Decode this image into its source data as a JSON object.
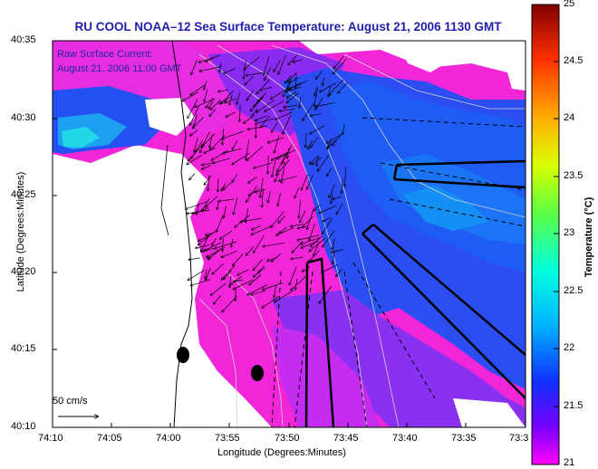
{
  "title": "RU COOL  NOAA–12  Sea Surface Temperature:  August 21, 2006 1130 GMT",
  "annotation": {
    "line1": "Raw Surface Current:",
    "line2": "August 21, 2006 11:00 GMT"
  },
  "scale_label": "50 cm/s",
  "axes": {
    "ylabel": "Latitude (Degrees:Minutes)",
    "xlabel": "Longitude (Degrees:Minutes)",
    "lat_ticks": [
      "40:35",
      "40:30",
      "40:25",
      "40:20",
      "40:15",
      "40:10"
    ],
    "lon_ticks": [
      "74:10",
      "74:05",
      "74:00",
      "73:55",
      "73:50",
      "73:45",
      "73:40",
      "73:35",
      "73:3"
    ]
  },
  "colorbar": {
    "label": "Temperature (°C)",
    "ticks": [
      "25",
      "24.5",
      "24",
      "23.5",
      "23",
      "22.5",
      "22",
      "21.5",
      "21"
    ],
    "range": [
      21,
      25
    ]
  },
  "colors": {
    "title": "#1f1faa",
    "warm": "#ff33cc",
    "cool": "#2255ee"
  }
}
